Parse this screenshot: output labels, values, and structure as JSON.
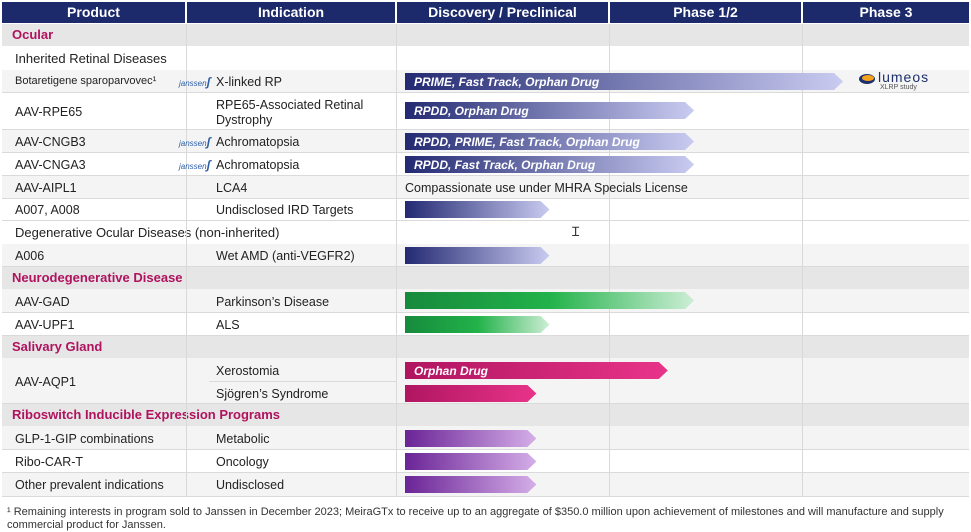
{
  "header": {
    "product": "Product",
    "indication": "Indication",
    "discovery": "Discovery / Preclinical",
    "phase12": "Phase 1/2",
    "phase3": "Phase 3"
  },
  "sections": {
    "ocular": "Ocular",
    "inherited": "Inherited Retinal Diseases",
    "degenerative": "Degenerative Ocular Diseases (non-inherited)",
    "neuro": "Neurodegenerative Disease",
    "salivary": "Salivary Gland",
    "riboswitch": "Riboswitch Inducible Expression Programs"
  },
  "rows": [
    {
      "product": "Botaretigene sparoparvovec¹",
      "indication": "X-linked RP",
      "bar_label": "PRIME, Fast Track, Orphan Drug",
      "progress": 1.0
    },
    {
      "product": "AAV-RPE65",
      "indication": "RPE65-Associated Retinal",
      "indication2": "Dystrophy",
      "bar_label": "RPDD, Orphan Drug",
      "progress": 0.66
    },
    {
      "product": "AAV-CNGB3",
      "indication": "Achromatopsia",
      "bar_label": "RPDD, PRIME, Fast Track, Orphan Drug",
      "progress": 0.66
    },
    {
      "product": "AAV-CNGA3",
      "indication": "Achromatopsia",
      "bar_label": "RPDD, Fast Track, Orphan Drug",
      "progress": 0.66
    },
    {
      "product": "AAV-AIPL1",
      "indication": "LCA4",
      "note": "Compassionate use under MHRA Specials License"
    },
    {
      "product": "A007, A008",
      "indication": "Undisclosed IRD Targets",
      "bar_label": "",
      "progress": 0.33
    },
    {
      "product": "A006",
      "indication": "Wet AMD (anti-VEGFR2)",
      "bar_label": "",
      "progress": 0.33
    },
    {
      "product": "AAV-GAD",
      "indication": "Parkinson’s Disease",
      "bar_label": "",
      "progress": 0.66
    },
    {
      "product": "AAV-UPF1",
      "indication": "ALS",
      "bar_label": "",
      "progress": 0.33
    },
    {
      "product": "AAV-AQP1",
      "indication": "Xerostomia",
      "bar_label": "Orphan Drug",
      "progress": 0.6
    },
    {
      "product": "",
      "indication": "Sjögren’s Syndrome",
      "bar_label": "",
      "progress": 0.3
    },
    {
      "product": "GLP-1-GIP combinations",
      "indication": "Metabolic",
      "bar_label": "",
      "progress": 0.3
    },
    {
      "product": "Ribo-CAR-T",
      "indication": "Oncology",
      "bar_label": "",
      "progress": 0.3
    },
    {
      "product": "Other prevalent indications",
      "indication": "Undisclosed",
      "bar_label": "",
      "progress": 0.3
    }
  ],
  "partner": "janssen",
  "lumeos": {
    "name": "lumeos",
    "sub": "XLRP study"
  },
  "footnote": "¹ Remaining interests in program sold to Janssen in December 2023; MeiraGTx to receive up to an aggregate of $350.0 million upon achievement of milestones and will manufacture and supply commercial product for Janssen.",
  "colors": {
    "header": "#1c2a6b",
    "ocular": "#2a2f7e",
    "neuro": "#1a9a44",
    "salivary": "#c2185b",
    "ribo": "#7a2e9e"
  }
}
